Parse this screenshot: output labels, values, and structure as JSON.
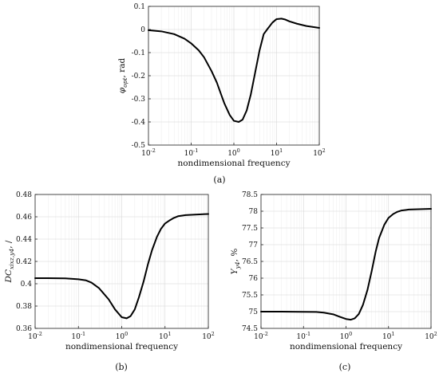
{
  "chart_data": [
    {
      "id": "a",
      "type": "line",
      "panel_label": "(a)",
      "xlabel": "nondimensional frequency",
      "ylabel": "φ_opt, rad",
      "ylabel_parts": {
        "symbol": "φ",
        "subscript": "opt",
        "suffix": ", rad"
      },
      "xscale": "log",
      "xlim": [
        0.01,
        100
      ],
      "ylim": [
        -0.5,
        0.1
      ],
      "grid": true,
      "xticks": [
        0.01,
        0.1,
        1,
        10,
        100
      ],
      "xtick_labels": [
        {
          "base": "10",
          "exp": "-2"
        },
        {
          "base": "10",
          "exp": "-1"
        },
        {
          "base": "10",
          "exp": "0"
        },
        {
          "base": "10",
          "exp": "1"
        },
        {
          "base": "10",
          "exp": "2"
        }
      ],
      "yticks": [
        -0.5,
        -0.4,
        -0.3,
        -0.2,
        -0.1,
        0,
        0.1
      ],
      "ytick_labels": [
        "-0.5",
        "-0.4",
        "-0.3",
        "-0.2",
        "-0.1",
        "0",
        "0.1"
      ],
      "series": [
        {
          "x": [
            0.01,
            0.02,
            0.04,
            0.07,
            0.1,
            0.15,
            0.2,
            0.3,
            0.4,
            0.5,
            0.6,
            0.8,
            1.0,
            1.3,
            1.6,
            2.0,
            2.5,
            3.2,
            4.0,
            5.0,
            6.0,
            8.0,
            10,
            13,
            16,
            20,
            30,
            50,
            100
          ],
          "y": [
            -0.003,
            -0.008,
            -0.02,
            -0.04,
            -0.06,
            -0.09,
            -0.12,
            -0.18,
            -0.23,
            -0.28,
            -0.32,
            -0.37,
            -0.395,
            -0.4,
            -0.39,
            -0.35,
            -0.28,
            -0.18,
            -0.09,
            -0.02,
            0.0,
            0.03,
            0.045,
            0.047,
            0.043,
            0.035,
            0.025,
            0.015,
            0.007
          ]
        }
      ]
    },
    {
      "id": "b",
      "type": "line",
      "panel_label": "(b)",
      "xlabel": "nondimensional frequency",
      "ylabel": "DC_xixz,y4, /",
      "ylabel_parts": {
        "symbol": "DC",
        "subscript": "xixz,y4",
        "suffix": ", /"
      },
      "xscale": "log",
      "xlim": [
        0.01,
        100
      ],
      "ylim": [
        0.36,
        0.48
      ],
      "grid": true,
      "xticks": [
        0.01,
        0.1,
        1,
        10,
        100
      ],
      "xtick_labels": [
        {
          "base": "10",
          "exp": "-2"
        },
        {
          "base": "10",
          "exp": "-1"
        },
        {
          "base": "10",
          "exp": "0"
        },
        {
          "base": "10",
          "exp": "1"
        },
        {
          "base": "10",
          "exp": "2"
        }
      ],
      "yticks": [
        0.36,
        0.38,
        0.4,
        0.42,
        0.44,
        0.46,
        0.48
      ],
      "ytick_labels": [
        "0.36",
        "0.38",
        "0.4",
        "0.42",
        "0.44",
        "0.46",
        "0.48"
      ],
      "series": [
        {
          "x": [
            0.01,
            0.02,
            0.05,
            0.1,
            0.15,
            0.2,
            0.3,
            0.5,
            0.7,
            1.0,
            1.3,
            1.6,
            2.0,
            2.5,
            3.2,
            4.0,
            5.0,
            6.5,
            8.0,
            10,
            13,
            16,
            20,
            30,
            50,
            100
          ],
          "y": [
            0.405,
            0.405,
            0.4048,
            0.404,
            0.403,
            0.401,
            0.396,
            0.386,
            0.377,
            0.37,
            0.369,
            0.371,
            0.377,
            0.388,
            0.402,
            0.417,
            0.43,
            0.442,
            0.449,
            0.454,
            0.457,
            0.459,
            0.4605,
            0.4615,
            0.462,
            0.4625
          ]
        }
      ]
    },
    {
      "id": "c",
      "type": "line",
      "panel_label": "(c)",
      "xlabel": "nondimensional frequency",
      "ylabel": "Y_y4, %",
      "ylabel_parts": {
        "symbol": "Y",
        "subscript": "y4",
        "suffix": ", %"
      },
      "xscale": "log",
      "xlim": [
        0.01,
        100
      ],
      "ylim": [
        74.5,
        78.5
      ],
      "grid": true,
      "xticks": [
        0.01,
        0.1,
        1,
        10,
        100
      ],
      "xtick_labels": [
        {
          "base": "10",
          "exp": "-2"
        },
        {
          "base": "10",
          "exp": "-1"
        },
        {
          "base": "10",
          "exp": "0"
        },
        {
          "base": "10",
          "exp": "1"
        },
        {
          "base": "10",
          "exp": "2"
        }
      ],
      "yticks": [
        74.5,
        75,
        75.5,
        76,
        76.5,
        77,
        77.5,
        78,
        78.5
      ],
      "ytick_labels": [
        "74.5",
        "75",
        "75.5",
        "76",
        "76.5",
        "77",
        "77.5",
        "78",
        "78.5"
      ],
      "series": [
        {
          "x": [
            0.01,
            0.03,
            0.1,
            0.2,
            0.3,
            0.5,
            0.7,
            1.0,
            1.3,
            1.6,
            2.0,
            2.5,
            3.2,
            4.0,
            5.0,
            6.0,
            8.0,
            10,
            13,
            16,
            20,
            30,
            50,
            100
          ],
          "y": [
            75.0,
            75.0,
            74.995,
            74.99,
            74.97,
            74.92,
            74.85,
            74.78,
            74.76,
            74.8,
            74.93,
            75.2,
            75.65,
            76.2,
            76.8,
            77.2,
            77.6,
            77.8,
            77.92,
            77.98,
            78.02,
            78.05,
            78.06,
            78.07
          ]
        }
      ]
    }
  ]
}
